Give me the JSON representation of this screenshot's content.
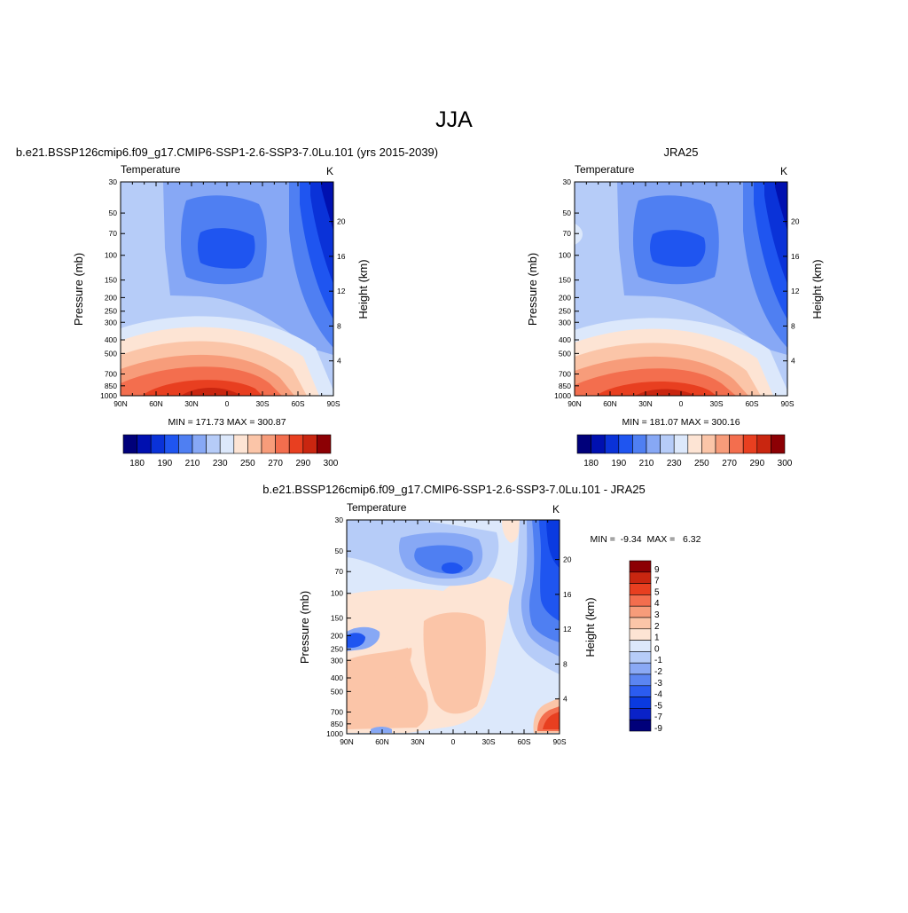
{
  "figure": {
    "title": "JJA"
  },
  "palette": {
    "abs": [
      "#00007a",
      "#0010b0",
      "#0a32d8",
      "#1f55f0",
      "#4f7ff2",
      "#87a8f5",
      "#b6ccf8",
      "#dce8fb",
      "#fde4d4",
      "#fbc5a8",
      "#f79c7a",
      "#f36e4e",
      "#e83f20",
      "#c92610",
      "#8c0004"
    ],
    "diff": [
      "#00007a",
      "#0a22c8",
      "#0a3ae0",
      "#2b5cf0",
      "#5b85f2",
      "#8aa9f5",
      "#b6ccf8",
      "#dce8fb",
      "#fde4d4",
      "#fbc5a8",
      "#f79c7a",
      "#f36e4e",
      "#e83f20",
      "#c92610",
      "#8c0004"
    ]
  },
  "chart_data": [
    {
      "type": "heatmap",
      "title": "b.e21.BSSP126cmip6.f09_g17.CMIP6-SSP1-2.6-SSP3-7.0Lu.101 (yrs 2015-2039)",
      "left_label": "Temperature",
      "right_label": "K",
      "xlabel": "",
      "ylabel": "Pressure (mb)",
      "y2label": "Height (km)",
      "x_ticks": [
        "90N",
        "60N",
        "30N",
        "0",
        "30S",
        "60S",
        "90S"
      ],
      "y_ticks": [
        30,
        50,
        70,
        100,
        150,
        200,
        250,
        300,
        400,
        500,
        700,
        850,
        1000
      ],
      "y2_ticks": [
        20,
        16,
        12,
        8,
        4
      ],
      "ylim": [
        30,
        1000
      ],
      "y_scale": "log",
      "stats": "MIN = 171.73  MAX = 300.87",
      "colorbar_levels": [
        180,
        190,
        210,
        230,
        250,
        270,
        290,
        300
      ],
      "colorbar_orientation": "horizontal"
    },
    {
      "type": "heatmap",
      "title": "JRA25",
      "left_label": "Temperature",
      "right_label": "K",
      "xlabel": "",
      "ylabel": "Pressure (mb)",
      "y2label": "Height (km)",
      "x_ticks": [
        "90N",
        "60N",
        "30N",
        "0",
        "30S",
        "60S",
        "90S"
      ],
      "y_ticks": [
        30,
        50,
        70,
        100,
        150,
        200,
        250,
        300,
        400,
        500,
        700,
        850,
        1000
      ],
      "y2_ticks": [
        20,
        16,
        12,
        8,
        4
      ],
      "ylim": [
        30,
        1000
      ],
      "y_scale": "log",
      "stats": "MIN = 181.07  MAX = 300.16",
      "colorbar_levels": [
        180,
        190,
        210,
        230,
        250,
        270,
        290,
        300
      ],
      "colorbar_orientation": "horizontal"
    },
    {
      "type": "heatmap",
      "title": "b.e21.BSSP126cmip6.f09_g17.CMIP6-SSP1-2.6-SSP3-7.0Lu.101 - JRA25",
      "left_label": "Temperature",
      "right_label": "K",
      "xlabel": "",
      "ylabel": "Pressure (mb)",
      "y2label": "Height (km)",
      "x_ticks": [
        "90N",
        "60N",
        "30N",
        "0",
        "30S",
        "60S",
        "90S"
      ],
      "y_ticks": [
        30,
        50,
        70,
        100,
        150,
        200,
        250,
        300,
        400,
        500,
        700,
        850,
        1000
      ],
      "y2_ticks": [
        20,
        16,
        12,
        8,
        4
      ],
      "ylim": [
        30,
        1000
      ],
      "y_scale": "log",
      "stats": "MIN =  -9.34  MAX =   6.32",
      "colorbar_levels": [
        9,
        7,
        5,
        4,
        3,
        2,
        1,
        0,
        -1,
        -2,
        -3,
        -4,
        -5,
        -7,
        -9
      ],
      "colorbar_orientation": "vertical"
    }
  ]
}
